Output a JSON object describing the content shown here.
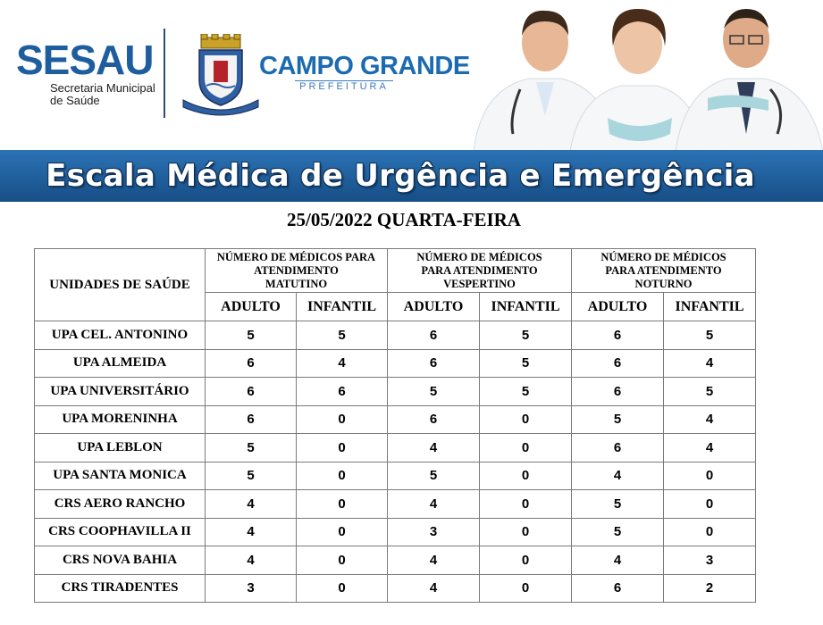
{
  "header": {
    "logo_sesau": "SESAU",
    "logo_sesau_line1": "Secretaria Municipal",
    "logo_sesau_line2": "de Saúde",
    "logo_city": "CAMPO GRANDE",
    "logo_city_sub": "PREFEITURA"
  },
  "banner": {
    "title": "Escala Médica de Urgência e Emergência"
  },
  "date": "25/05/2022 QUARTA-FEIRA",
  "table": {
    "unit_header": "UNIDADES DE SAÚDE",
    "groups": [
      {
        "line1": "NÚMERO DE MÉDICOS PARA",
        "line2": "ATENDIMENTO",
        "line3": "MATUTINO"
      },
      {
        "line1": "NÚMERO DE MÉDICOS",
        "line2": "PARA ATENDIMENTO",
        "line3": "VESPERTINO"
      },
      {
        "line1": "NÚMERO DE MÉDICOS",
        "line2": "PARA ATENDIMENTO",
        "line3": "NOTURNO"
      }
    ],
    "sub_headers": [
      "ADULTO",
      "INFANTIL",
      "ADULTO",
      "INFANTIL",
      "ADULTO",
      "INFANTIL"
    ],
    "rows": [
      {
        "unit": "UPA CEL. ANTONINO",
        "values": [
          "5",
          "5",
          "6",
          "5",
          "6",
          "5"
        ]
      },
      {
        "unit": "UPA ALMEIDA",
        "values": [
          "6",
          "4",
          "6",
          "5",
          "6",
          "4"
        ]
      },
      {
        "unit": "UPA UNIVERSITÁRIO",
        "values": [
          "6",
          "6",
          "5",
          "5",
          "6",
          "5"
        ]
      },
      {
        "unit": "UPA MORENINHA",
        "values": [
          "6",
          "0",
          "6",
          "0",
          "5",
          "4"
        ]
      },
      {
        "unit": "UPA LEBLON",
        "values": [
          "5",
          "0",
          "4",
          "0",
          "6",
          "4"
        ]
      },
      {
        "unit": "UPA SANTA MONICA",
        "values": [
          "5",
          "0",
          "5",
          "0",
          "4",
          "0"
        ]
      },
      {
        "unit": "CRS AERO RANCHO",
        "values": [
          "4",
          "0",
          "4",
          "0",
          "5",
          "0"
        ]
      },
      {
        "unit": "CRS COOPHAVILLA II",
        "values": [
          "4",
          "0",
          "3",
          "0",
          "5",
          "0"
        ]
      },
      {
        "unit": "CRS NOVA BAHIA",
        "values": [
          "4",
          "0",
          "4",
          "0",
          "4",
          "3"
        ]
      },
      {
        "unit": "CRS TIRADENTES",
        "values": [
          "3",
          "0",
          "4",
          "0",
          "6",
          "2"
        ]
      }
    ]
  }
}
